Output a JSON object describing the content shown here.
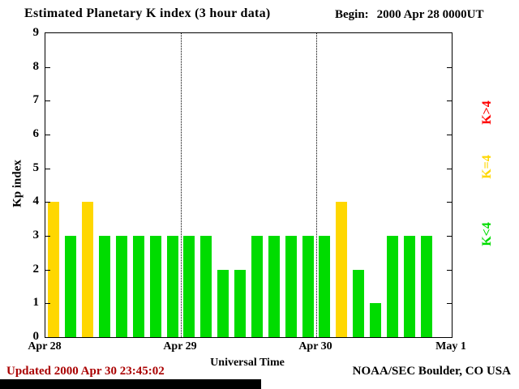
{
  "header": {
    "title": "Estimated Planetary K index (3 hour data)",
    "begin_label": "Begin:",
    "begin_value": "2000 Apr 28 0000UT"
  },
  "footer": {
    "updated": "Updated 2000 Apr 30 23:45:02",
    "source": "NOAA/SEC Boulder, CO USA"
  },
  "chart_data": {
    "type": "bar",
    "title": "Estimated Planetary K index (3 hour data)",
    "xlabel": "Universal Time",
    "ylabel": "Kp index",
    "ylim": [
      0,
      9
    ],
    "y_ticks": [
      0,
      1,
      2,
      3,
      4,
      5,
      6,
      7,
      8,
      9
    ],
    "x_tick_labels": [
      "Apr 28",
      "Apr 29",
      "Apr 30",
      "May 1"
    ],
    "interval_hours": 3,
    "slots_per_day": 8,
    "days": 3,
    "values": [
      4,
      3,
      4,
      3,
      3,
      3,
      3,
      3,
      3,
      3,
      2,
      2,
      3,
      3,
      3,
      3,
      3,
      4,
      2,
      1,
      3,
      3,
      3
    ],
    "color_rules": {
      "below4": "#00dc00",
      "equal4": "#ffd700",
      "above4": "#ff0000"
    },
    "legend": [
      {
        "label": "K>4",
        "color": "#ff0000"
      },
      {
        "label": "K=4",
        "color": "#ffd700"
      },
      {
        "label": "K<4",
        "color": "#00dc00"
      }
    ],
    "legend_position": "right",
    "grid": "dotted vertical lines at day boundaries"
  }
}
